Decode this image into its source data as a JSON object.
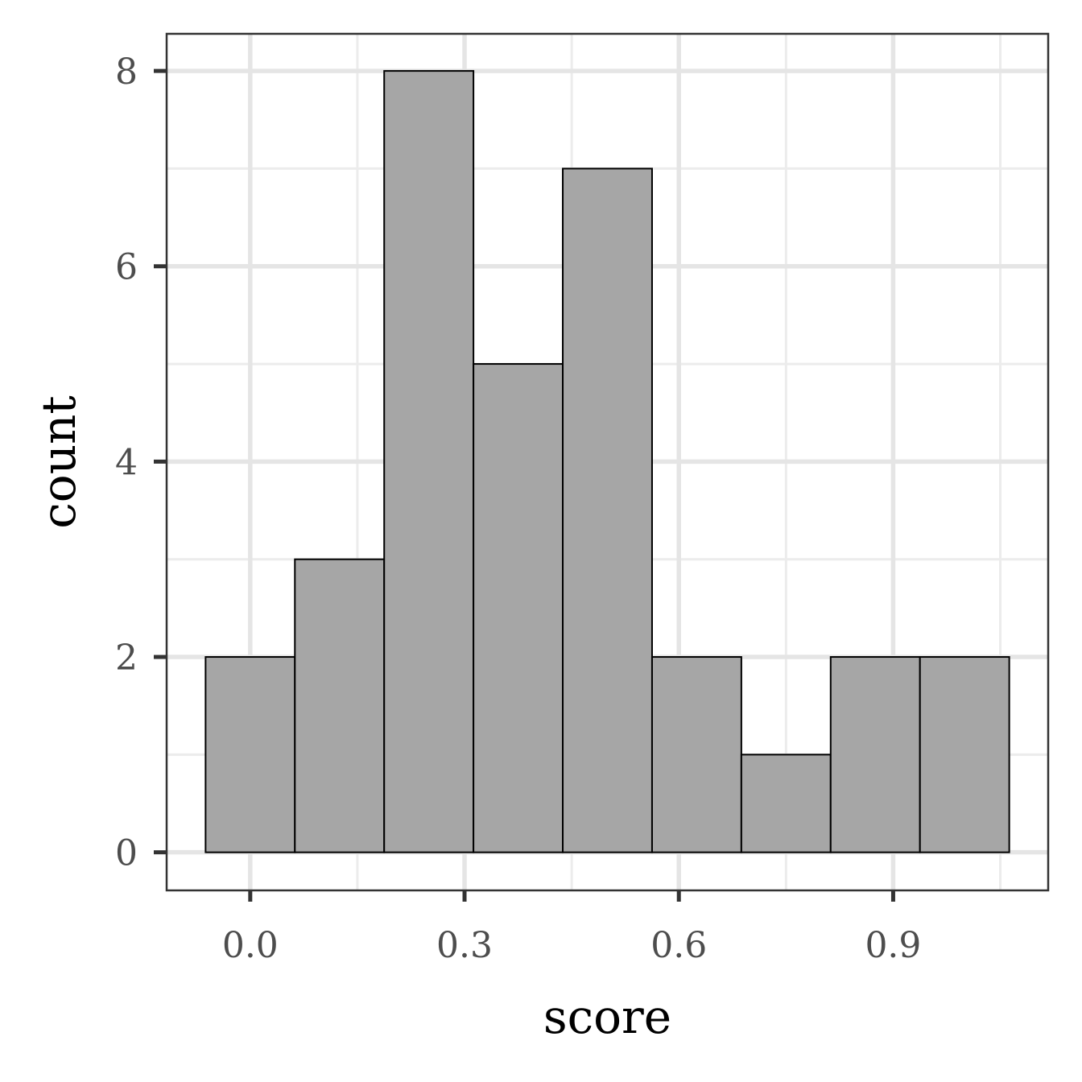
{
  "chart_data": {
    "type": "bar",
    "title": "",
    "xlabel": "score",
    "ylabel": "count",
    "bins": [
      {
        "x0": -0.0625,
        "x1": 0.0625,
        "count": 2
      },
      {
        "x0": 0.0625,
        "x1": 0.1875,
        "count": 3
      },
      {
        "x0": 0.1875,
        "x1": 0.3125,
        "count": 8
      },
      {
        "x0": 0.3125,
        "x1": 0.4375,
        "count": 5
      },
      {
        "x0": 0.4375,
        "x1": 0.5625,
        "count": 7
      },
      {
        "x0": 0.5625,
        "x1": 0.6875,
        "count": 2
      },
      {
        "x0": 0.6875,
        "x1": 0.8125,
        "count": 1
      },
      {
        "x0": 0.8125,
        "x1": 0.9375,
        "count": 2
      },
      {
        "x0": 0.9375,
        "x1": 1.0625,
        "count": 2
      }
    ],
    "xlim": [
      -0.117,
      1.117
    ],
    "ylim": [
      -0.39,
      8.38
    ],
    "x_ticks": [
      0.0,
      0.3,
      0.6,
      0.9
    ],
    "x_tick_labels": [
      "0.0",
      "0.3",
      "0.6",
      "0.9"
    ],
    "y_ticks": [
      0,
      2,
      4,
      6,
      8
    ],
    "y_tick_labels": [
      "0",
      "2",
      "4",
      "6",
      "8"
    ],
    "x_minor_ticks": [
      0.15,
      0.45,
      0.75,
      1.05
    ],
    "y_minor_ticks": [
      1,
      3,
      5,
      7
    ],
    "grid": true,
    "legend": "none",
    "colors": {
      "bar_fill": "#a6a6a6",
      "bar_stroke": "#000000",
      "grid_major": "#e5e5e5",
      "grid_minor": "#ececec",
      "panel_border": "#333333",
      "tick_text": "#4d4d4d"
    }
  }
}
